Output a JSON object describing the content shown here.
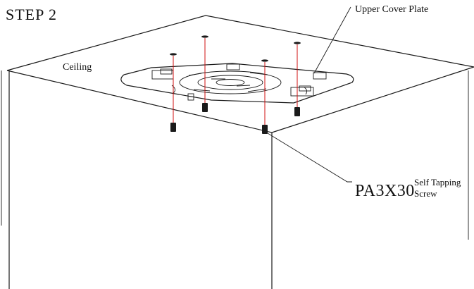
{
  "step_title": "STEP 2",
  "labels": {
    "ceiling": "Ceiling",
    "upper_cover_plate": "Upper Cover Plate",
    "screw_code": "PA3X30",
    "screw_desc_line1": "Self Tapping",
    "screw_desc_line2": "Screw"
  },
  "colors": {
    "line": "#1a1a1a",
    "guide": "#d01010",
    "background": "#ffffff"
  }
}
